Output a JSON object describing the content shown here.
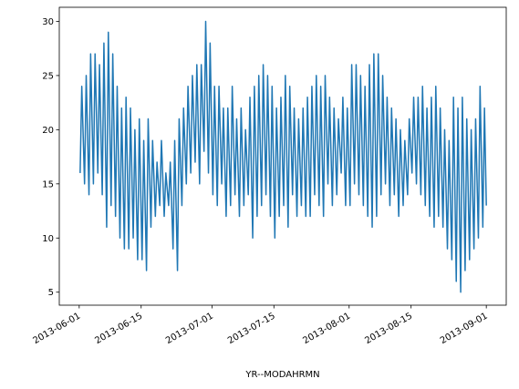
{
  "chart_data": {
    "type": "line",
    "xlabel": "YR--MODAHRMN",
    "color": "#1f77b4",
    "x": [
      "2013-06-01 05:00",
      "2013-06-01 14:00",
      "2013-06-02 05:00",
      "2013-06-02 14:00",
      "2013-06-03 05:00",
      "2013-06-03 14:00",
      "2013-06-04 05:00",
      "2013-06-04 14:00",
      "2013-06-05 05:00",
      "2013-06-05 14:00",
      "2013-06-06 05:00",
      "2013-06-06 14:00",
      "2013-06-07 05:00",
      "2013-06-07 14:00",
      "2013-06-08 05:00",
      "2013-06-08 14:00",
      "2013-06-09 05:00",
      "2013-06-09 14:00",
      "2013-06-10 05:00",
      "2013-06-10 14:00",
      "2013-06-11 05:00",
      "2013-06-11 14:00",
      "2013-06-12 05:00",
      "2013-06-12 14:00",
      "2013-06-13 05:00",
      "2013-06-13 14:00",
      "2013-06-14 05:00",
      "2013-06-14 14:00",
      "2013-06-15 05:00",
      "2013-06-15 14:00",
      "2013-06-16 05:00",
      "2013-06-16 14:00",
      "2013-06-17 05:00",
      "2013-06-17 14:00",
      "2013-06-18 05:00",
      "2013-06-18 14:00",
      "2013-06-19 05:00",
      "2013-06-19 14:00",
      "2013-06-20 05:00",
      "2013-06-20 14:00",
      "2013-06-21 05:00",
      "2013-06-21 14:00",
      "2013-06-22 05:00",
      "2013-06-22 14:00",
      "2013-06-23 05:00",
      "2013-06-23 14:00",
      "2013-06-24 05:00",
      "2013-06-24 14:00",
      "2013-06-25 05:00",
      "2013-06-25 14:00",
      "2013-06-26 05:00",
      "2013-06-26 14:00",
      "2013-06-27 05:00",
      "2013-06-27 14:00",
      "2013-06-28 05:00",
      "2013-06-28 14:00",
      "2013-06-29 05:00",
      "2013-06-29 14:00",
      "2013-06-30 05:00",
      "2013-06-30 14:00",
      "2013-07-01 05:00",
      "2013-07-01 14:00",
      "2013-07-02 05:00",
      "2013-07-02 14:00",
      "2013-07-03 05:00",
      "2013-07-03 14:00",
      "2013-07-04 05:00",
      "2013-07-04 14:00",
      "2013-07-05 05:00",
      "2013-07-05 14:00",
      "2013-07-06 05:00",
      "2013-07-06 14:00",
      "2013-07-07 05:00",
      "2013-07-07 14:00",
      "2013-07-08 05:00",
      "2013-07-08 14:00",
      "2013-07-09 05:00",
      "2013-07-09 14:00",
      "2013-07-10 05:00",
      "2013-07-10 14:00",
      "2013-07-11 05:00",
      "2013-07-11 14:00",
      "2013-07-12 05:00",
      "2013-07-12 14:00",
      "2013-07-13 05:00",
      "2013-07-13 14:00",
      "2013-07-14 05:00",
      "2013-07-14 14:00",
      "2013-07-15 05:00",
      "2013-07-15 14:00",
      "2013-07-16 05:00",
      "2013-07-16 14:00",
      "2013-07-17 05:00",
      "2013-07-17 14:00",
      "2013-07-18 05:00",
      "2013-07-18 14:00",
      "2013-07-19 05:00",
      "2013-07-19 14:00",
      "2013-07-20 05:00",
      "2013-07-20 14:00",
      "2013-07-21 05:00",
      "2013-07-21 14:00",
      "2013-07-22 05:00",
      "2013-07-22 14:00",
      "2013-07-23 05:00",
      "2013-07-23 14:00",
      "2013-07-24 05:00",
      "2013-07-24 14:00",
      "2013-07-25 05:00",
      "2013-07-25 14:00",
      "2013-07-26 05:00",
      "2013-07-26 14:00",
      "2013-07-27 05:00",
      "2013-07-27 14:00",
      "2013-07-28 05:00",
      "2013-07-28 14:00",
      "2013-07-29 05:00",
      "2013-07-29 14:00",
      "2013-07-30 05:00",
      "2013-07-30 14:00",
      "2013-07-31 05:00",
      "2013-07-31 14:00",
      "2013-08-01 05:00",
      "2013-08-01 14:00",
      "2013-08-02 05:00",
      "2013-08-02 14:00",
      "2013-08-03 05:00",
      "2013-08-03 14:00",
      "2013-08-04 05:00",
      "2013-08-04 14:00",
      "2013-08-05 05:00",
      "2013-08-05 14:00",
      "2013-08-06 05:00",
      "2013-08-06 14:00",
      "2013-08-07 05:00",
      "2013-08-07 14:00",
      "2013-08-08 05:00",
      "2013-08-08 14:00",
      "2013-08-09 05:00",
      "2013-08-09 14:00",
      "2013-08-10 05:00",
      "2013-08-10 14:00",
      "2013-08-11 05:00",
      "2013-08-11 14:00",
      "2013-08-12 05:00",
      "2013-08-12 14:00",
      "2013-08-13 05:00",
      "2013-08-13 14:00",
      "2013-08-14 05:00",
      "2013-08-14 14:00",
      "2013-08-15 05:00",
      "2013-08-15 14:00",
      "2013-08-16 05:00",
      "2013-08-16 14:00",
      "2013-08-17 05:00",
      "2013-08-17 14:00",
      "2013-08-18 05:00",
      "2013-08-18 14:00",
      "2013-08-19 05:00",
      "2013-08-19 14:00",
      "2013-08-20 05:00",
      "2013-08-20 14:00",
      "2013-08-21 05:00",
      "2013-08-21 14:00",
      "2013-08-22 05:00",
      "2013-08-22 14:00",
      "2013-08-23 05:00",
      "2013-08-23 14:00",
      "2013-08-24 05:00",
      "2013-08-24 14:00",
      "2013-08-25 05:00",
      "2013-08-25 14:00",
      "2013-08-26 05:00",
      "2013-08-26 14:00",
      "2013-08-27 05:00",
      "2013-08-27 14:00",
      "2013-08-28 05:00",
      "2013-08-28 14:00",
      "2013-08-29 05:00",
      "2013-08-29 14:00",
      "2013-08-30 05:00",
      "2013-08-30 14:00",
      "2013-08-31 05:00",
      "2013-08-31 14:00",
      "2013-09-01 00:00"
    ],
    "values": [
      16,
      24,
      15,
      25,
      14,
      27,
      15,
      27,
      16,
      26,
      14,
      28,
      11,
      29,
      13,
      27,
      12,
      24,
      10,
      22,
      9,
      23,
      9,
      22,
      10,
      20,
      8,
      21,
      8,
      19,
      7,
      21,
      11,
      19,
      12,
      17,
      13,
      19,
      12,
      16,
      13,
      17,
      9,
      19,
      7,
      21,
      13,
      22,
      15,
      24,
      16,
      25,
      17,
      26,
      15,
      26,
      18,
      30,
      16,
      28,
      14,
      24,
      13,
      24,
      15,
      22,
      12,
      22,
      13,
      24,
      14,
      21,
      12,
      22,
      13,
      20,
      14,
      23,
      10,
      24,
      12,
      25,
      13,
      26,
      14,
      25,
      12,
      24,
      10,
      22,
      12,
      23,
      13,
      25,
      11,
      24,
      14,
      22,
      12,
      21,
      13,
      22,
      12,
      23,
      12,
      24,
      14,
      25,
      13,
      24,
      12,
      25,
      15,
      23,
      13,
      22,
      14,
      21,
      16,
      23,
      13,
      22,
      13,
      26,
      15,
      26,
      14,
      25,
      13,
      24,
      12,
      26,
      11,
      27,
      12,
      27,
      14,
      25,
      15,
      23,
      13,
      22,
      14,
      21,
      12,
      20,
      13,
      19,
      14,
      21,
      16,
      23,
      15,
      23,
      14,
      24,
      13,
      22,
      12,
      23,
      11,
      24,
      12,
      22,
      11,
      20,
      9,
      19,
      8,
      23,
      6,
      22,
      5,
      23,
      7,
      21,
      8,
      20,
      9,
      21,
      10,
      24,
      11,
      22,
      13
    ],
    "xlim": [
      "2013-05-27 12:00",
      "2013-09-05 12:00"
    ],
    "xticks": [
      "2013-06-01",
      "2013-06-15",
      "2013-07-01",
      "2013-07-15",
      "2013-08-01",
      "2013-08-15",
      "2013-09-01"
    ],
    "ylim": [
      3.8,
      31.3
    ],
    "yticks": [
      5,
      10,
      15,
      20,
      25,
      30
    ]
  }
}
